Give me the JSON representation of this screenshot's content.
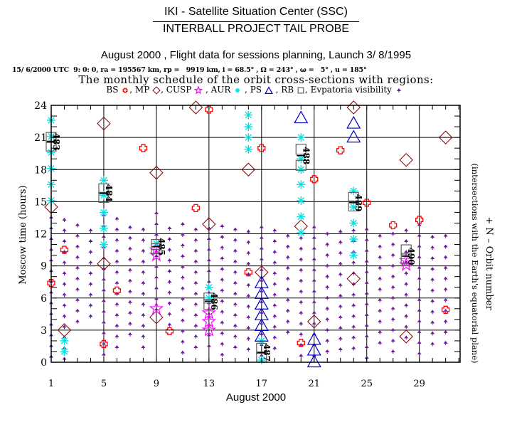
{
  "header": {
    "org_title": "IKI - Satellite Situation Center (SSC)",
    "project_title": "INTERBALL PROJECT TAIL PROBE",
    "subtitle": "August 2000 ,  Flight data for sessions planning,   Launch  3/ 8/1995",
    "orbit_params": "15/ 6/2000 UTC  9: 0: 0, ra = 195567 km, rp =   9919 km, i = 68.5° , Ω = 243° , ω =   5° , u = 185°",
    "schedule_title": "The monthly schedule of the orbit cross-sections with regions:"
  },
  "legend": {
    "items": [
      {
        "label": "BS",
        "symbol": "cross",
        "color": "#ff0000",
        "sep": ","
      },
      {
        "label": "MP",
        "symbol": "diamond",
        "color": "#800000",
        "sep": ","
      },
      {
        "label": "CUSP",
        "symbol": "star",
        "color": "#ff00ff",
        "sep": " ,"
      },
      {
        "label": "AUR",
        "symbol": "asterisk",
        "color": "#00e5e5",
        "sep": " ,"
      },
      {
        "label": "PS",
        "symbol": "triangle",
        "color": "#0000cc",
        "sep": " ,"
      },
      {
        "label": "RB",
        "symbol": "square",
        "color": "#606060",
        "sep": ","
      },
      {
        "label": "Evpatoria visibility",
        "symbol": "visibility",
        "color": "#6a1b9a",
        "sep": ""
      }
    ]
  },
  "chart_data": {
    "type": "scatter",
    "title": "The monthly schedule of the orbit cross-sections with regions",
    "xlabel": "August 2000",
    "ylabel": "Moscow time (hours)",
    "y2label_line1": "+ N  –  Orbit number",
    "y2label_line2": "(intersections with the Earth's equatorial plane)",
    "xlim": [
      1,
      32.1
    ],
    "ylim": [
      0,
      24
    ],
    "x_ticks": [
      1,
      5,
      9,
      13,
      17,
      21,
      25,
      29
    ],
    "x_tick_labels": [
      "1",
      "5",
      "9",
      "13",
      "17",
      "21",
      "25",
      "29"
    ],
    "y_ticks": [
      0,
      3,
      6,
      9,
      12,
      15,
      18,
      21,
      24
    ],
    "y_tick_labels": [
      "0",
      "3",
      "6",
      "9",
      "12",
      "15",
      "18",
      "21",
      "24"
    ],
    "grid": true,
    "series": [
      {
        "name": "BS",
        "symbol": "cross",
        "color": "#ff0000",
        "points": [
          [
            8,
            20.0
          ],
          [
            12,
            14.4
          ],
          [
            13,
            23.6
          ],
          [
            17,
            20.0
          ],
          [
            23,
            19.8
          ],
          [
            21,
            17.1
          ],
          [
            25,
            14.9
          ],
          [
            27,
            12.8
          ],
          [
            29,
            13.3
          ],
          [
            2,
            10.5
          ],
          [
            1,
            7.4
          ],
          [
            6,
            6.7
          ],
          [
            5,
            1.7
          ],
          [
            10,
            2.9
          ],
          [
            16,
            8.4
          ],
          [
            20,
            1.8
          ],
          [
            31,
            4.9
          ]
        ]
      },
      {
        "name": "MP",
        "symbol": "diamond",
        "color": "#800000",
        "points": [
          [
            5,
            22.3
          ],
          [
            9,
            17.7
          ],
          [
            12,
            23.8
          ],
          [
            13,
            12.9
          ],
          [
            16,
            18.0
          ],
          [
            24,
            23.8
          ],
          [
            28,
            18.9
          ],
          [
            31,
            21.0
          ],
          [
            20,
            12.7
          ],
          [
            1,
            14.5
          ],
          [
            2,
            3.0
          ],
          [
            5,
            9.2
          ],
          [
            9,
            4.2
          ],
          [
            24,
            7.8
          ],
          [
            17,
            8.4
          ],
          [
            21,
            3.8
          ],
          [
            28,
            2.4
          ]
        ]
      },
      {
        "name": "CUSP",
        "symbol": "star",
        "color": "#ff00ff",
        "points": [
          [
            9,
            10.0
          ],
          [
            9,
            10.5
          ],
          [
            9,
            5.0
          ],
          [
            13,
            4.6
          ],
          [
            13,
            3.8
          ],
          [
            13,
            3.0
          ],
          [
            28,
            9.1
          ],
          [
            28,
            9.5
          ]
        ]
      },
      {
        "name": "AUR",
        "symbol": "asterisk",
        "color": "#00e5e5",
        "points": [
          [
            1,
            22.6
          ],
          [
            1,
            21.1
          ],
          [
            1,
            19.6
          ],
          [
            1,
            18.1
          ],
          [
            1,
            16.6
          ],
          [
            1,
            15.1
          ],
          [
            5,
            17.0
          ],
          [
            5,
            15.6
          ],
          [
            5,
            14.0
          ],
          [
            5,
            12.5
          ],
          [
            5,
            11.0
          ],
          [
            2,
            2.0
          ],
          [
            2,
            1.0
          ],
          [
            9,
            11.1
          ],
          [
            13,
            7.0
          ],
          [
            13,
            6.0
          ],
          [
            16,
            23.1
          ],
          [
            16,
            22.0
          ],
          [
            16,
            21.0
          ],
          [
            16,
            19.9
          ],
          [
            20,
            21.0
          ],
          [
            20,
            19.0
          ],
          [
            20,
            18.0
          ],
          [
            20,
            16.6
          ],
          [
            20,
            15.1
          ],
          [
            20,
            13.6
          ],
          [
            20,
            12.1
          ],
          [
            24,
            16.0
          ],
          [
            24,
            14.5
          ],
          [
            24,
            13.0
          ],
          [
            24,
            11.5
          ],
          [
            24,
            10.0
          ],
          [
            17,
            2.0
          ],
          [
            17,
            0.2
          ]
        ]
      },
      {
        "name": "PS",
        "symbol": "triangle",
        "color": "#0000cc",
        "points": [
          [
            20,
            22.9
          ],
          [
            24,
            22.4
          ],
          [
            24,
            21.1
          ],
          [
            17,
            7.5
          ],
          [
            17,
            6.5
          ],
          [
            17,
            5.5
          ],
          [
            17,
            4.5
          ],
          [
            17,
            3.5
          ],
          [
            17,
            2.5
          ],
          [
            21,
            2.2
          ],
          [
            21,
            1.2
          ],
          [
            21,
            0.1
          ]
        ]
      },
      {
        "name": "RB",
        "symbol": "square",
        "color": "#606060",
        "points": [
          [
            1,
            21.0
          ],
          [
            1,
            20.2
          ],
          [
            5,
            16.2
          ],
          [
            5,
            15.4
          ],
          [
            9,
            11.0
          ],
          [
            9,
            10.6
          ],
          [
            13,
            6.0
          ],
          [
            13,
            5.4
          ],
          [
            17,
            1.3
          ],
          [
            17,
            0.5
          ],
          [
            20,
            19.9
          ],
          [
            20,
            18.4
          ],
          [
            24,
            15.4
          ],
          [
            24,
            14.6
          ],
          [
            28,
            10.5
          ],
          [
            28,
            9.7
          ]
        ]
      },
      {
        "name": "Orbit number",
        "symbol": "label",
        "points": [
          [
            1,
            20.6,
            "483"
          ],
          [
            5,
            15.8,
            "484"
          ],
          [
            9,
            10.8,
            "485"
          ],
          [
            13,
            5.7,
            "486"
          ],
          [
            17,
            0.9,
            "487"
          ],
          [
            20,
            19.3,
            "488"
          ],
          [
            24,
            14.9,
            "489"
          ],
          [
            28,
            9.9,
            "490"
          ]
        ]
      }
    ],
    "visibility": {
      "name": "Evpatoria visibility",
      "color": "#6a1b9a",
      "step_hours": 1.0,
      "columns": [
        [
          1,
          0.3,
          13.5
        ],
        [
          2,
          0.3,
          13.3
        ],
        [
          3,
          3.0,
          12.8
        ],
        [
          4,
          3.4,
          12.3
        ],
        [
          5,
          0.5,
          13.7
        ],
        [
          6,
          0.5,
          13.4
        ],
        [
          7,
          2.0,
          12.6
        ],
        [
          8,
          0.5,
          12.4
        ],
        [
          9,
          4.5,
          13.9
        ],
        [
          10,
          3.0,
          12.5
        ],
        [
          11,
          0.4,
          12.9
        ],
        [
          12,
          0.5,
          12.4
        ],
        [
          13,
          1.5,
          12.5
        ],
        [
          14,
          0.5,
          12.7
        ],
        [
          15,
          0.5,
          12.4
        ],
        [
          16,
          0.5,
          12.2
        ],
        [
          17,
          0.2,
          12.6
        ],
        [
          18,
          1.0,
          12.3
        ],
        [
          19,
          2.5,
          11.8
        ],
        [
          20,
          0.3,
          11.6
        ],
        [
          21,
          0.5,
          12.6
        ],
        [
          22,
          0.5,
          12.0
        ],
        [
          23,
          0.5,
          12.2
        ],
        [
          24,
          0.5,
          12.3
        ],
        [
          25,
          0.0,
          12.4
        ],
        [
          26,
          1.4,
          11.8
        ],
        [
          27,
          0.5,
          12.0
        ],
        [
          28,
          2.3,
          12.3
        ],
        [
          29,
          0.0,
          12.8
        ],
        [
          30,
          1.4,
          11.7
        ],
        [
          31,
          1.5,
          11.8
        ]
      ]
    }
  }
}
